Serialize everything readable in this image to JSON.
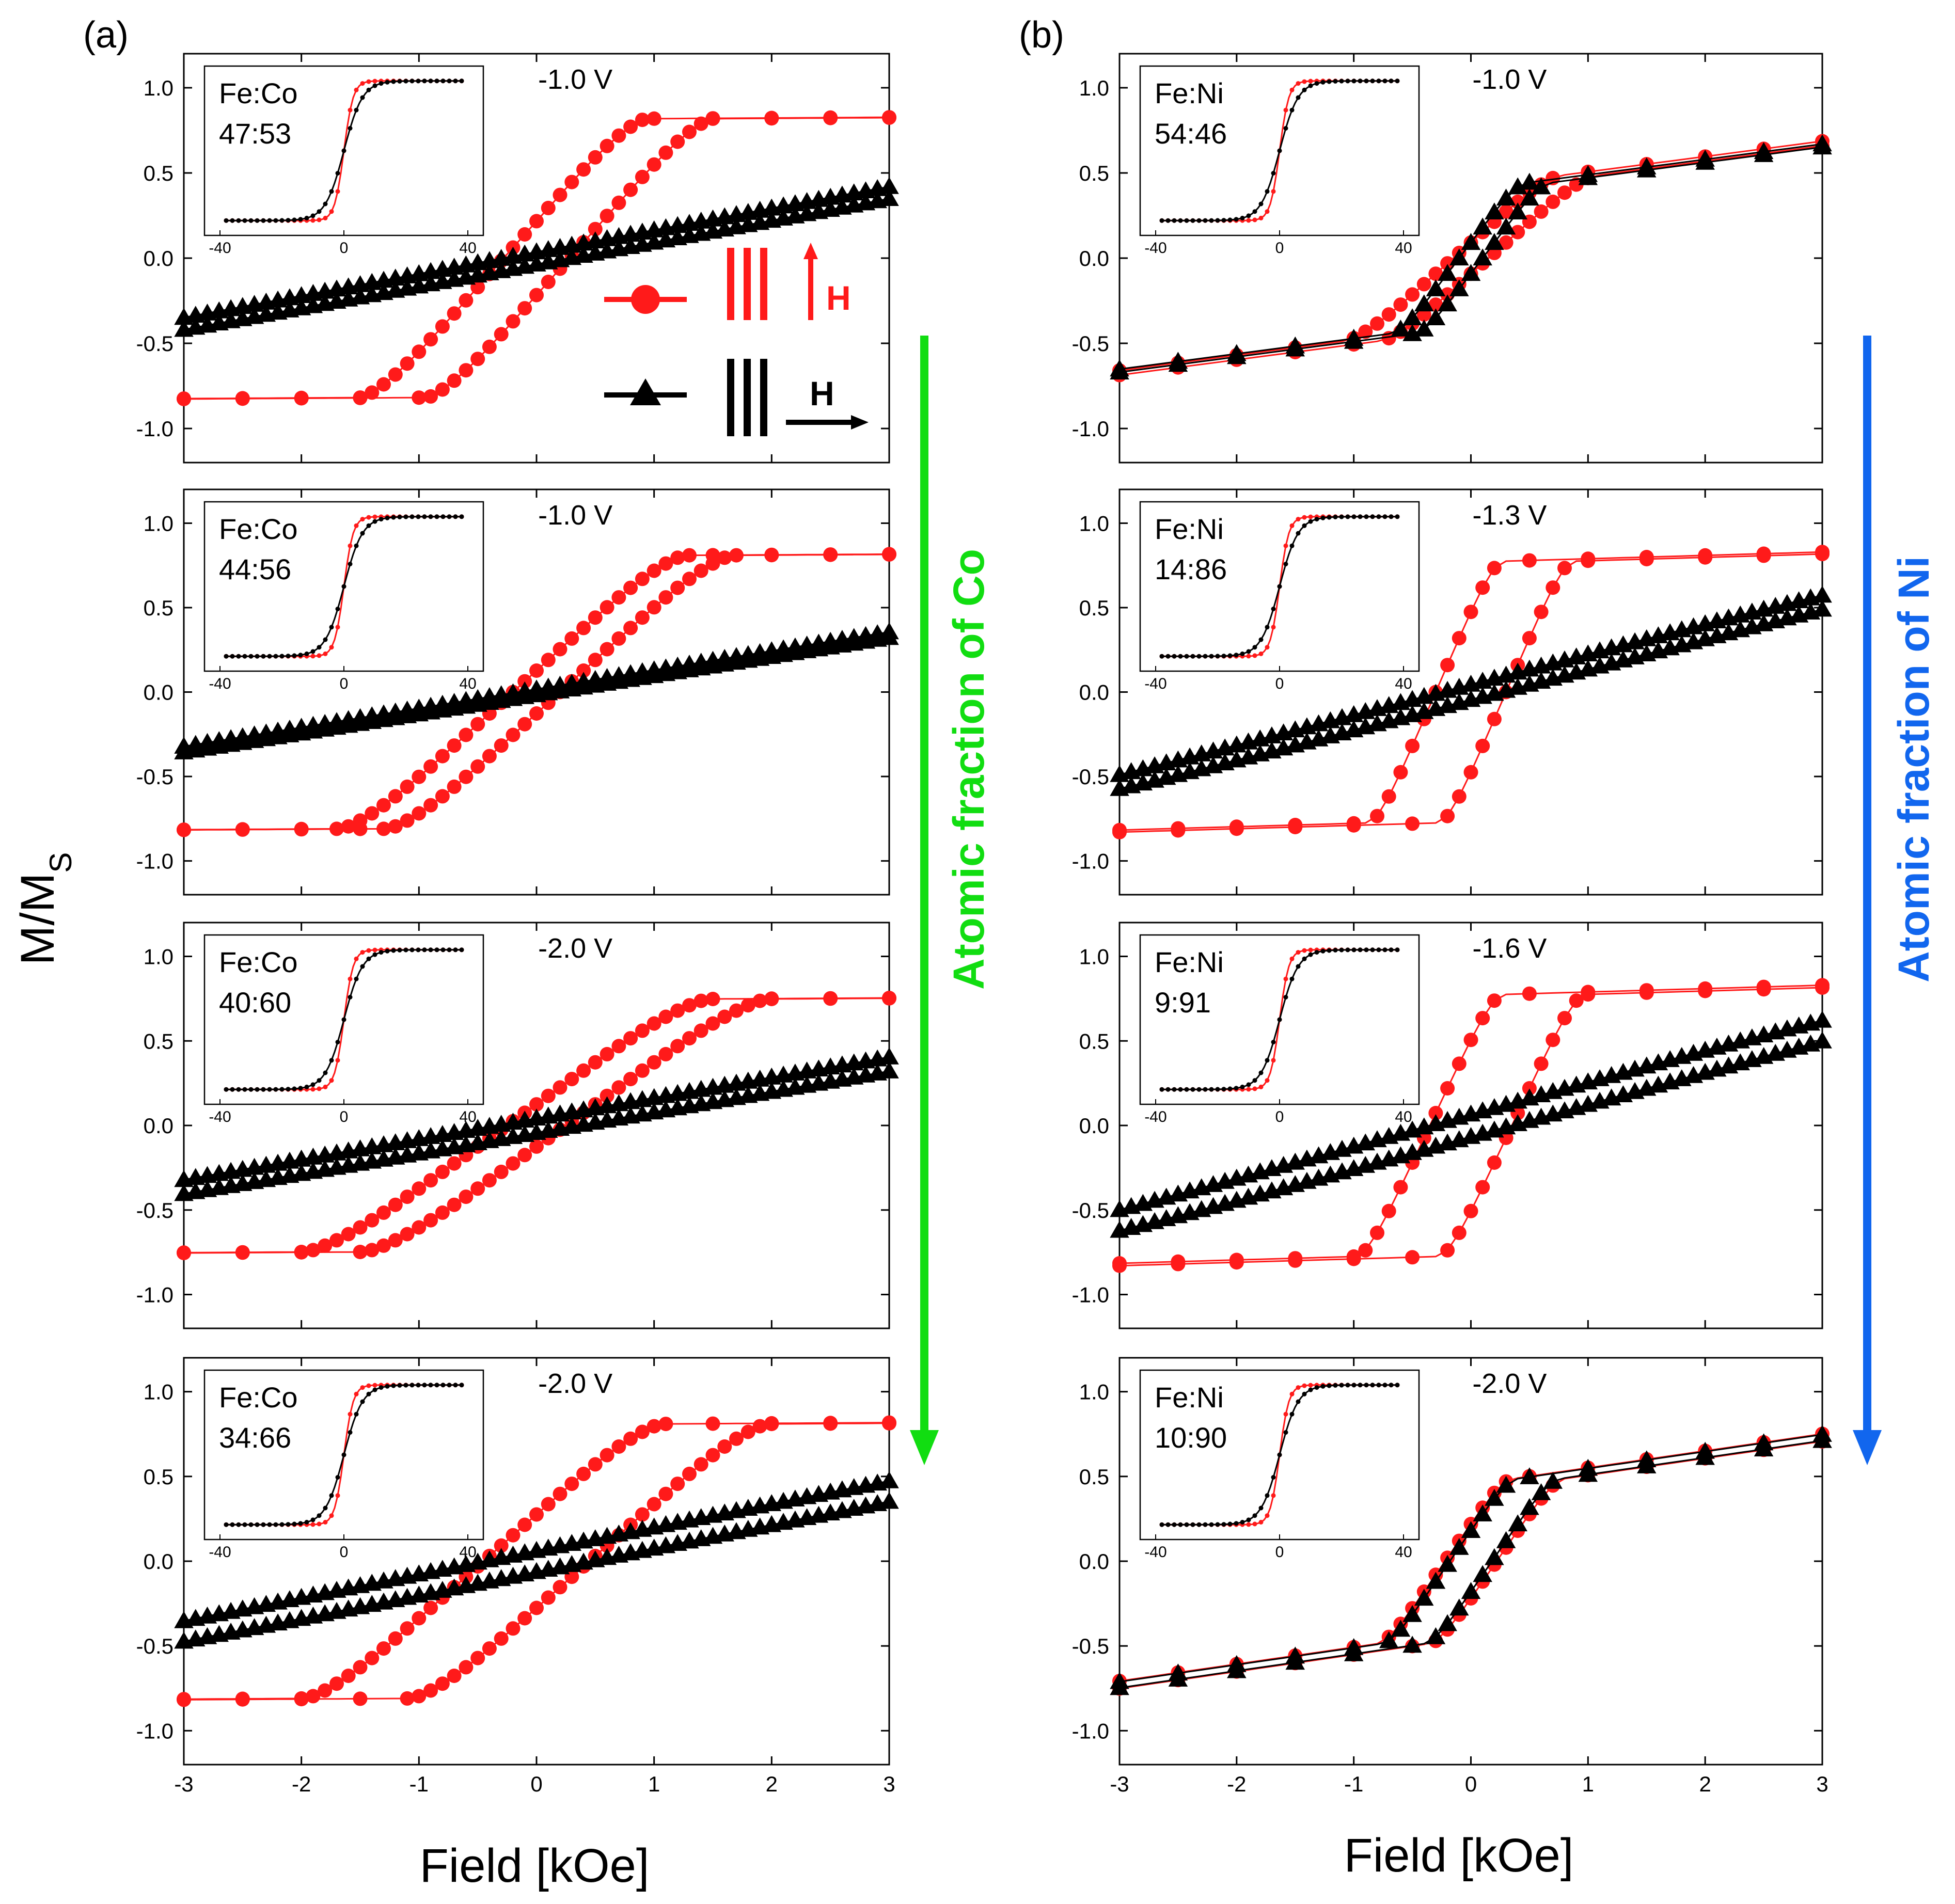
{
  "figure": {
    "colors": {
      "parallel": "#ff1a1a",
      "perpendicular": "#000000",
      "arrow_co": "#11dd11",
      "arrow_ni": "#1166ee"
    },
    "ylabel_main": "M/M",
    "ylabel_sub": "S",
    "xlabel": "Field [kOe]",
    "legend": {
      "parallel_field": "H",
      "perpendicular_field": "H"
    },
    "side_labels": {
      "left": "Atomic fraction of Co",
      "right": "Atomic fraction of Ni"
    }
  },
  "chart_data": [
    {
      "panel": "(a)",
      "row": 1,
      "type": "line",
      "composition_label": "Fe:Co",
      "composition": "47:53",
      "voltage": "-1.0 V",
      "xlim": [
        -3,
        3
      ],
      "ylim": [
        -1.2,
        1.2
      ],
      "xlabel": "Field [kOe]",
      "ylabel": "M/MS",
      "xticks": [
        "-3",
        "-2",
        "-1",
        "0",
        "1",
        "2",
        "3"
      ],
      "yticks": [
        "1.0",
        "0.5",
        "0.0",
        "-0.5",
        "-1.0"
      ],
      "inset_xticks": [
        "-40",
        "0",
        "40"
      ],
      "series": [
        {
          "name": "parallel",
          "style": "circle",
          "H_sat": 1.2,
          "H_c": 0.28,
          "M_s": 0.93,
          "sat_slope": 0.004
        },
        {
          "name": "perpendicular",
          "style": "triangle",
          "H_sat": 7.0,
          "H_c": 0.28,
          "M_s": 0.9,
          "sat_slope": 0.0
        }
      ]
    },
    {
      "panel": "(a)",
      "row": 2,
      "type": "line",
      "composition_label": "Fe:Co",
      "composition": "44:56",
      "voltage": "-1.0 V",
      "xlim": [
        -3,
        3
      ],
      "ylim": [
        -1.2,
        1.2
      ],
      "xlabel": "Field [kOe]",
      "ylabel": "M/MS",
      "xticks": [
        "-3",
        "-2",
        "-1",
        "0",
        "1",
        "2",
        "3"
      ],
      "yticks": [
        "1.0",
        "0.5",
        "0.0",
        "-0.5",
        "-1.0"
      ],
      "inset_xticks": [
        "-40",
        "0",
        "40"
      ],
      "series": [
        {
          "name": "parallel",
          "style": "circle",
          "H_sat": 1.45,
          "H_c": 0.2,
          "M_s": 0.92,
          "sat_slope": 0.004
        },
        {
          "name": "perpendicular",
          "style": "triangle",
          "H_sat": 7.5,
          "H_c": 0.15,
          "M_s": 0.85,
          "sat_slope": 0.0
        }
      ]
    },
    {
      "panel": "(a)",
      "row": 3,
      "type": "line",
      "composition_label": "Fe:Co",
      "composition": "40:60",
      "voltage": "-2.0 V",
      "xlim": [
        -3,
        3
      ],
      "ylim": [
        -1.2,
        1.2
      ],
      "xlabel": "Field [kOe]",
      "ylabel": "M/MS",
      "xticks": [
        "-3",
        "-2",
        "-1",
        "0",
        "1",
        "2",
        "3"
      ],
      "yticks": [
        "1.0",
        "0.5",
        "0.0",
        "-0.5",
        "-1.0"
      ],
      "inset_xticks": [
        "-40",
        "0",
        "40"
      ],
      "series": [
        {
          "name": "parallel",
          "style": "circle",
          "H_sat": 1.7,
          "H_c": 0.25,
          "M_s": 0.85,
          "sat_slope": 0.004
        },
        {
          "name": "perpendicular",
          "style": "triangle",
          "H_sat": 7.0,
          "H_c": 0.35,
          "M_s": 0.85,
          "sat_slope": 0.0
        }
      ]
    },
    {
      "panel": "(a)",
      "row": 4,
      "type": "line",
      "composition_label": "Fe:Co",
      "composition": "34:66",
      "voltage": "-2.0 V",
      "xlim": [
        -3,
        3
      ],
      "ylim": [
        -1.2,
        1.2
      ],
      "xlabel": "Field [kOe]",
      "ylabel": "M/MS",
      "xticks": [
        "-3",
        "-2",
        "-1",
        "0",
        "1",
        "2",
        "3"
      ],
      "yticks": [
        "1.0",
        "0.5",
        "0.0",
        "-0.5",
        "-1.0"
      ],
      "inset_xticks": [
        "-40",
        "0",
        "40"
      ],
      "series": [
        {
          "name": "parallel",
          "style": "circle",
          "H_sat": 1.5,
          "H_c": 0.45,
          "M_s": 0.92,
          "sat_slope": 0.004
        },
        {
          "name": "perpendicular",
          "style": "triangle",
          "H_sat": 6.5,
          "H_c": 0.45,
          "M_s": 0.9,
          "sat_slope": 0.0
        }
      ]
    },
    {
      "panel": "(b)",
      "row": 1,
      "type": "line",
      "composition_label": "Fe:Ni",
      "composition": "54:46",
      "voltage": "-1.0 V",
      "xlim": [
        -3,
        3
      ],
      "ylim": [
        -1.2,
        1.2
      ],
      "xlabel": "Field [kOe]",
      "ylabel": "M/MS",
      "xticks": [
        "-3",
        "-2",
        "-1",
        "0",
        "1",
        "2",
        "3"
      ],
      "yticks": [
        "1.0",
        "0.5",
        "0.0",
        "-0.5",
        "-1.0"
      ],
      "inset_xticks": [
        "-40",
        "0",
        "40"
      ],
      "series": [
        {
          "name": "parallel",
          "style": "circle",
          "H_sat": 0.9,
          "H_c": 0.15,
          "M_s": 0.55,
          "sat_slope": 0.09
        },
        {
          "name": "perpendicular",
          "style": "triangle",
          "H_sat": 0.55,
          "H_c": 0.1,
          "M_s": 0.5,
          "sat_slope": 0.09
        }
      ]
    },
    {
      "panel": "(b)",
      "row": 2,
      "type": "line",
      "composition_label": "Fe:Ni",
      "composition": "14:86",
      "voltage": "-1.3 V",
      "xlim": [
        -3,
        3
      ],
      "ylim": [
        -1.2,
        1.2
      ],
      "xlabel": "Field [kOe]",
      "ylabel": "M/MS",
      "xticks": [
        "-3",
        "-2",
        "-1",
        "0",
        "1",
        "2",
        "3"
      ],
      "yticks": [
        "1.0",
        "0.5",
        "0.0",
        "-0.5",
        "-1.0"
      ],
      "inset_xticks": [
        "-40",
        "0",
        "40"
      ],
      "series": [
        {
          "name": "parallel",
          "style": "circle",
          "H_sat": 0.55,
          "H_c": 0.3,
          "M_s": 0.88,
          "sat_slope": 0.02
        },
        {
          "name": "perpendicular",
          "style": "triangle",
          "H_sat": 5.0,
          "H_c": 0.25,
          "M_s": 0.9,
          "sat_slope": 0.0
        }
      ]
    },
    {
      "panel": "(b)",
      "row": 3,
      "type": "line",
      "composition_label": "Fe:Ni",
      "composition": "9:91",
      "voltage": "-1.6 V",
      "xlim": [
        -3,
        3
      ],
      "ylim": [
        -1.2,
        1.2
      ],
      "xlabel": "Field [kOe]",
      "ylabel": "M/MS",
      "xticks": [
        "-3",
        "-2",
        "-1",
        "0",
        "1",
        "2",
        "3"
      ],
      "yticks": [
        "1.0",
        "0.5",
        "0.0",
        "-0.5",
        "-1.0"
      ],
      "inset_xticks": [
        "-40",
        "0",
        "40"
      ],
      "series": [
        {
          "name": "parallel",
          "style": "circle",
          "H_sat": 0.6,
          "H_c": 0.35,
          "M_s": 0.88,
          "sat_slope": 0.02
        },
        {
          "name": "perpendicular",
          "style": "triangle",
          "H_sat": 5.0,
          "H_c": 0.35,
          "M_s": 0.95,
          "sat_slope": 0.0
        }
      ]
    },
    {
      "panel": "(b)",
      "row": 4,
      "type": "line",
      "composition_label": "Fe:Ni",
      "composition": "10:90",
      "voltage": "-2.0 V",
      "xlim": [
        -3,
        3
      ],
      "ylim": [
        -1.2,
        1.2
      ],
      "xlabel": "Field [kOe]",
      "ylabel": "M/MS",
      "xticks": [
        "-3",
        "-2",
        "-1",
        "0",
        "1",
        "2",
        "3"
      ],
      "yticks": [
        "1.0",
        "0.5",
        "0.0",
        "-0.5",
        "-1.0"
      ],
      "inset_xticks": [
        "-40",
        "0",
        "40"
      ],
      "series": [
        {
          "name": "parallel",
          "style": "circle",
          "H_sat": 0.55,
          "H_c": 0.22,
          "M_s": 0.55,
          "sat_slope": 0.1
        },
        {
          "name": "perpendicular",
          "style": "triangle",
          "H_sat": 0.55,
          "H_c": 0.18,
          "M_s": 0.55,
          "sat_slope": 0.1
        }
      ]
    }
  ]
}
